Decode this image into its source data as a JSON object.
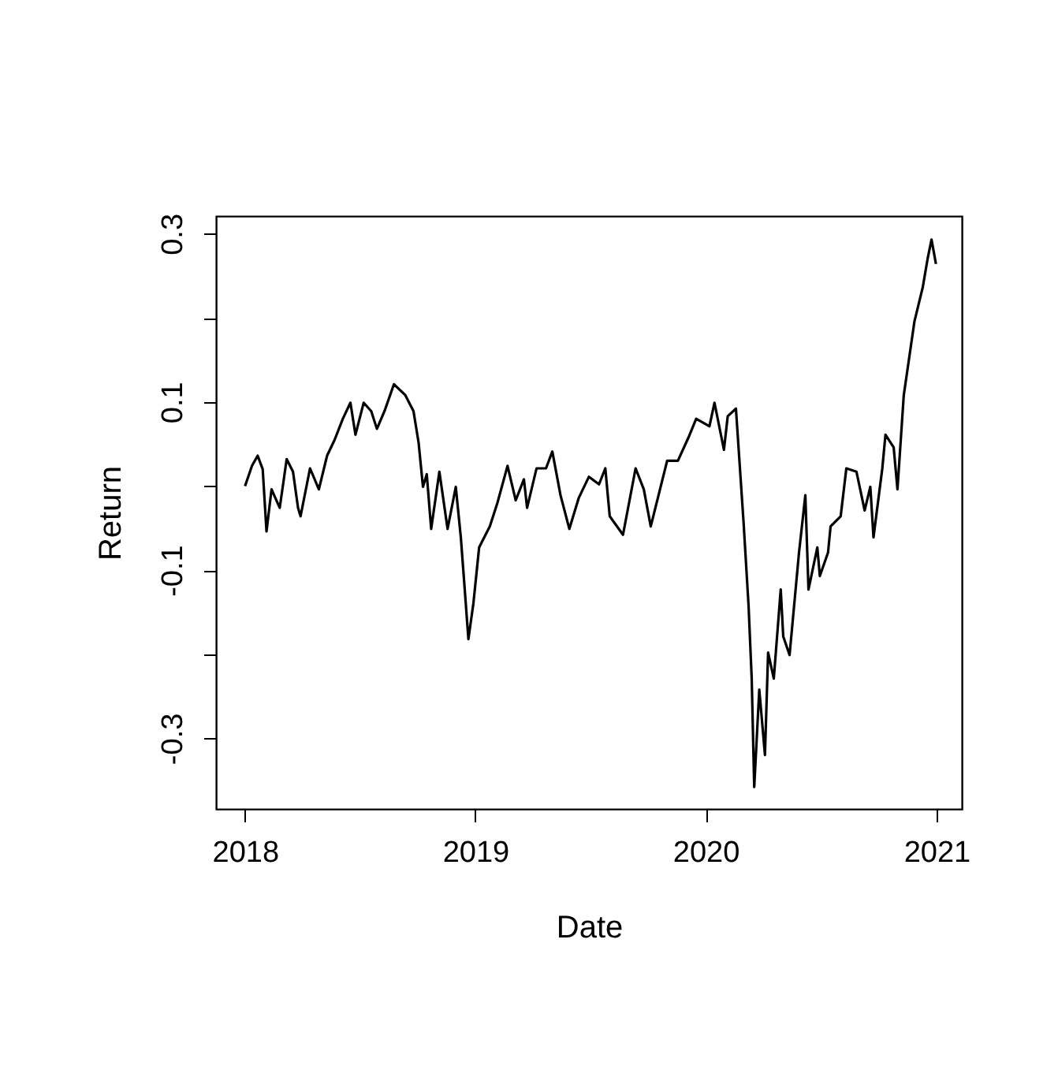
{
  "chart_data": {
    "type": "line",
    "xlabel": "Date",
    "ylabel": "Return",
    "x": [
      "2018-01-01",
      "2018-01-12",
      "2018-01-21",
      "2018-01-29",
      "2018-02-04",
      "2018-02-12",
      "2018-02-25",
      "2018-03-08",
      "2018-03-18",
      "2018-03-26",
      "2018-03-30",
      "2018-04-14",
      "2018-04-28",
      "2018-05-11",
      "2018-05-23",
      "2018-06-05",
      "2018-06-17",
      "2018-06-25",
      "2018-07-08",
      "2018-07-20",
      "2018-07-29",
      "2018-08-10",
      "2018-08-25",
      "2018-09-12",
      "2018-09-25",
      "2018-10-03",
      "2018-10-10",
      "2018-10-16",
      "2018-10-23",
      "2018-11-05",
      "2018-11-18",
      "2018-12-01",
      "2018-12-09",
      "2018-12-14",
      "2018-12-21",
      "2018-12-29",
      "2019-01-07",
      "2019-01-24",
      "2019-02-05",
      "2019-02-21",
      "2019-03-06",
      "2019-03-19",
      "2019-03-24",
      "2019-04-08",
      "2019-04-23",
      "2019-05-03",
      "2019-05-16",
      "2019-05-30",
      "2019-06-14",
      "2019-06-30",
      "2019-07-16",
      "2019-07-26",
      "2019-08-02",
      "2019-08-23",
      "2019-09-12",
      "2019-09-25",
      "2019-10-06",
      "2019-11-01",
      "2019-11-18",
      "2019-12-05",
      "2019-12-17",
      "2020-01-07",
      "2020-01-15",
      "2020-01-30",
      "2020-02-05",
      "2020-02-18",
      "2020-03-01",
      "2020-03-09",
      "2020-03-14",
      "2020-03-18",
      "2020-03-26",
      "2020-04-04",
      "2020-04-09",
      "2020-04-18",
      "2020-04-29",
      "2020-05-03",
      "2020-05-13",
      "2020-05-28",
      "2020-06-07",
      "2020-06-12",
      "2020-06-26",
      "2020-06-30",
      "2020-07-13",
      "2020-07-17",
      "2020-08-02",
      "2020-08-11",
      "2020-08-27",
      "2020-09-09",
      "2020-09-18",
      "2020-09-23",
      "2020-10-07",
      "2020-10-12",
      "2020-10-25",
      "2020-10-31",
      "2020-11-10",
      "2020-11-27",
      "2020-12-10",
      "2020-12-18",
      "2020-12-24",
      "2020-12-31"
    ],
    "series": [
      {
        "color": "#000000",
        "values": [
          0.0,
          0.024,
          0.036,
          0.02,
          -0.054,
          -0.004,
          -0.026,
          0.032,
          0.017,
          -0.026,
          -0.036,
          0.021,
          -0.004,
          0.036,
          0.055,
          0.08,
          0.099,
          0.061,
          0.099,
          0.089,
          0.068,
          0.089,
          0.121,
          0.108,
          0.089,
          0.052,
          -0.001,
          0.014,
          -0.051,
          0.017,
          -0.051,
          -0.001,
          -0.061,
          -0.111,
          -0.182,
          -0.139,
          -0.073,
          -0.048,
          -0.02,
          0.024,
          -0.017,
          0.008,
          -0.026,
          0.021,
          0.021,
          0.041,
          -0.011,
          -0.051,
          -0.014,
          0.011,
          0.002,
          0.021,
          -0.036,
          -0.058,
          0.021,
          -0.004,
          -0.048,
          0.03,
          0.03,
          0.058,
          0.08,
          0.071,
          0.099,
          0.043,
          0.083,
          0.092,
          -0.042,
          -0.142,
          -0.229,
          -0.358,
          -0.242,
          -0.32,
          -0.198,
          -0.229,
          -0.123,
          -0.179,
          -0.201,
          -0.079,
          -0.011,
          -0.123,
          -0.073,
          -0.107,
          -0.079,
          -0.048,
          -0.036,
          0.021,
          0.017,
          -0.029,
          -0.001,
          -0.061,
          0.021,
          0.061,
          0.046,
          -0.004,
          0.108,
          0.196,
          0.236,
          0.271,
          0.293,
          0.264
        ]
      }
    ],
    "xlim": [
      "2017-11-16",
      "2021-02-10"
    ],
    "xticks": [
      {
        "value": "2018-01-01",
        "label": "2018"
      },
      {
        "value": "2019-01-01",
        "label": "2019"
      },
      {
        "value": "2020-01-01",
        "label": "2020"
      },
      {
        "value": "2021-01-01",
        "label": "2021"
      }
    ],
    "ylim": [
      -0.384,
      0.321
    ],
    "yticks": [
      {
        "value": -0.3,
        "label": "-0.3"
      },
      {
        "value": -0.2,
        "label": null
      },
      {
        "value": -0.1,
        "label": "-0.1"
      },
      {
        "value": 0,
        "label": null
      },
      {
        "value": 0.1,
        "label": "0.1"
      },
      {
        "value": 0.2,
        "label": null
      },
      {
        "value": 0.3,
        "label": "0.3"
      }
    ],
    "grid": false,
    "legend": false,
    "marker": "none",
    "line_style": "solid"
  }
}
